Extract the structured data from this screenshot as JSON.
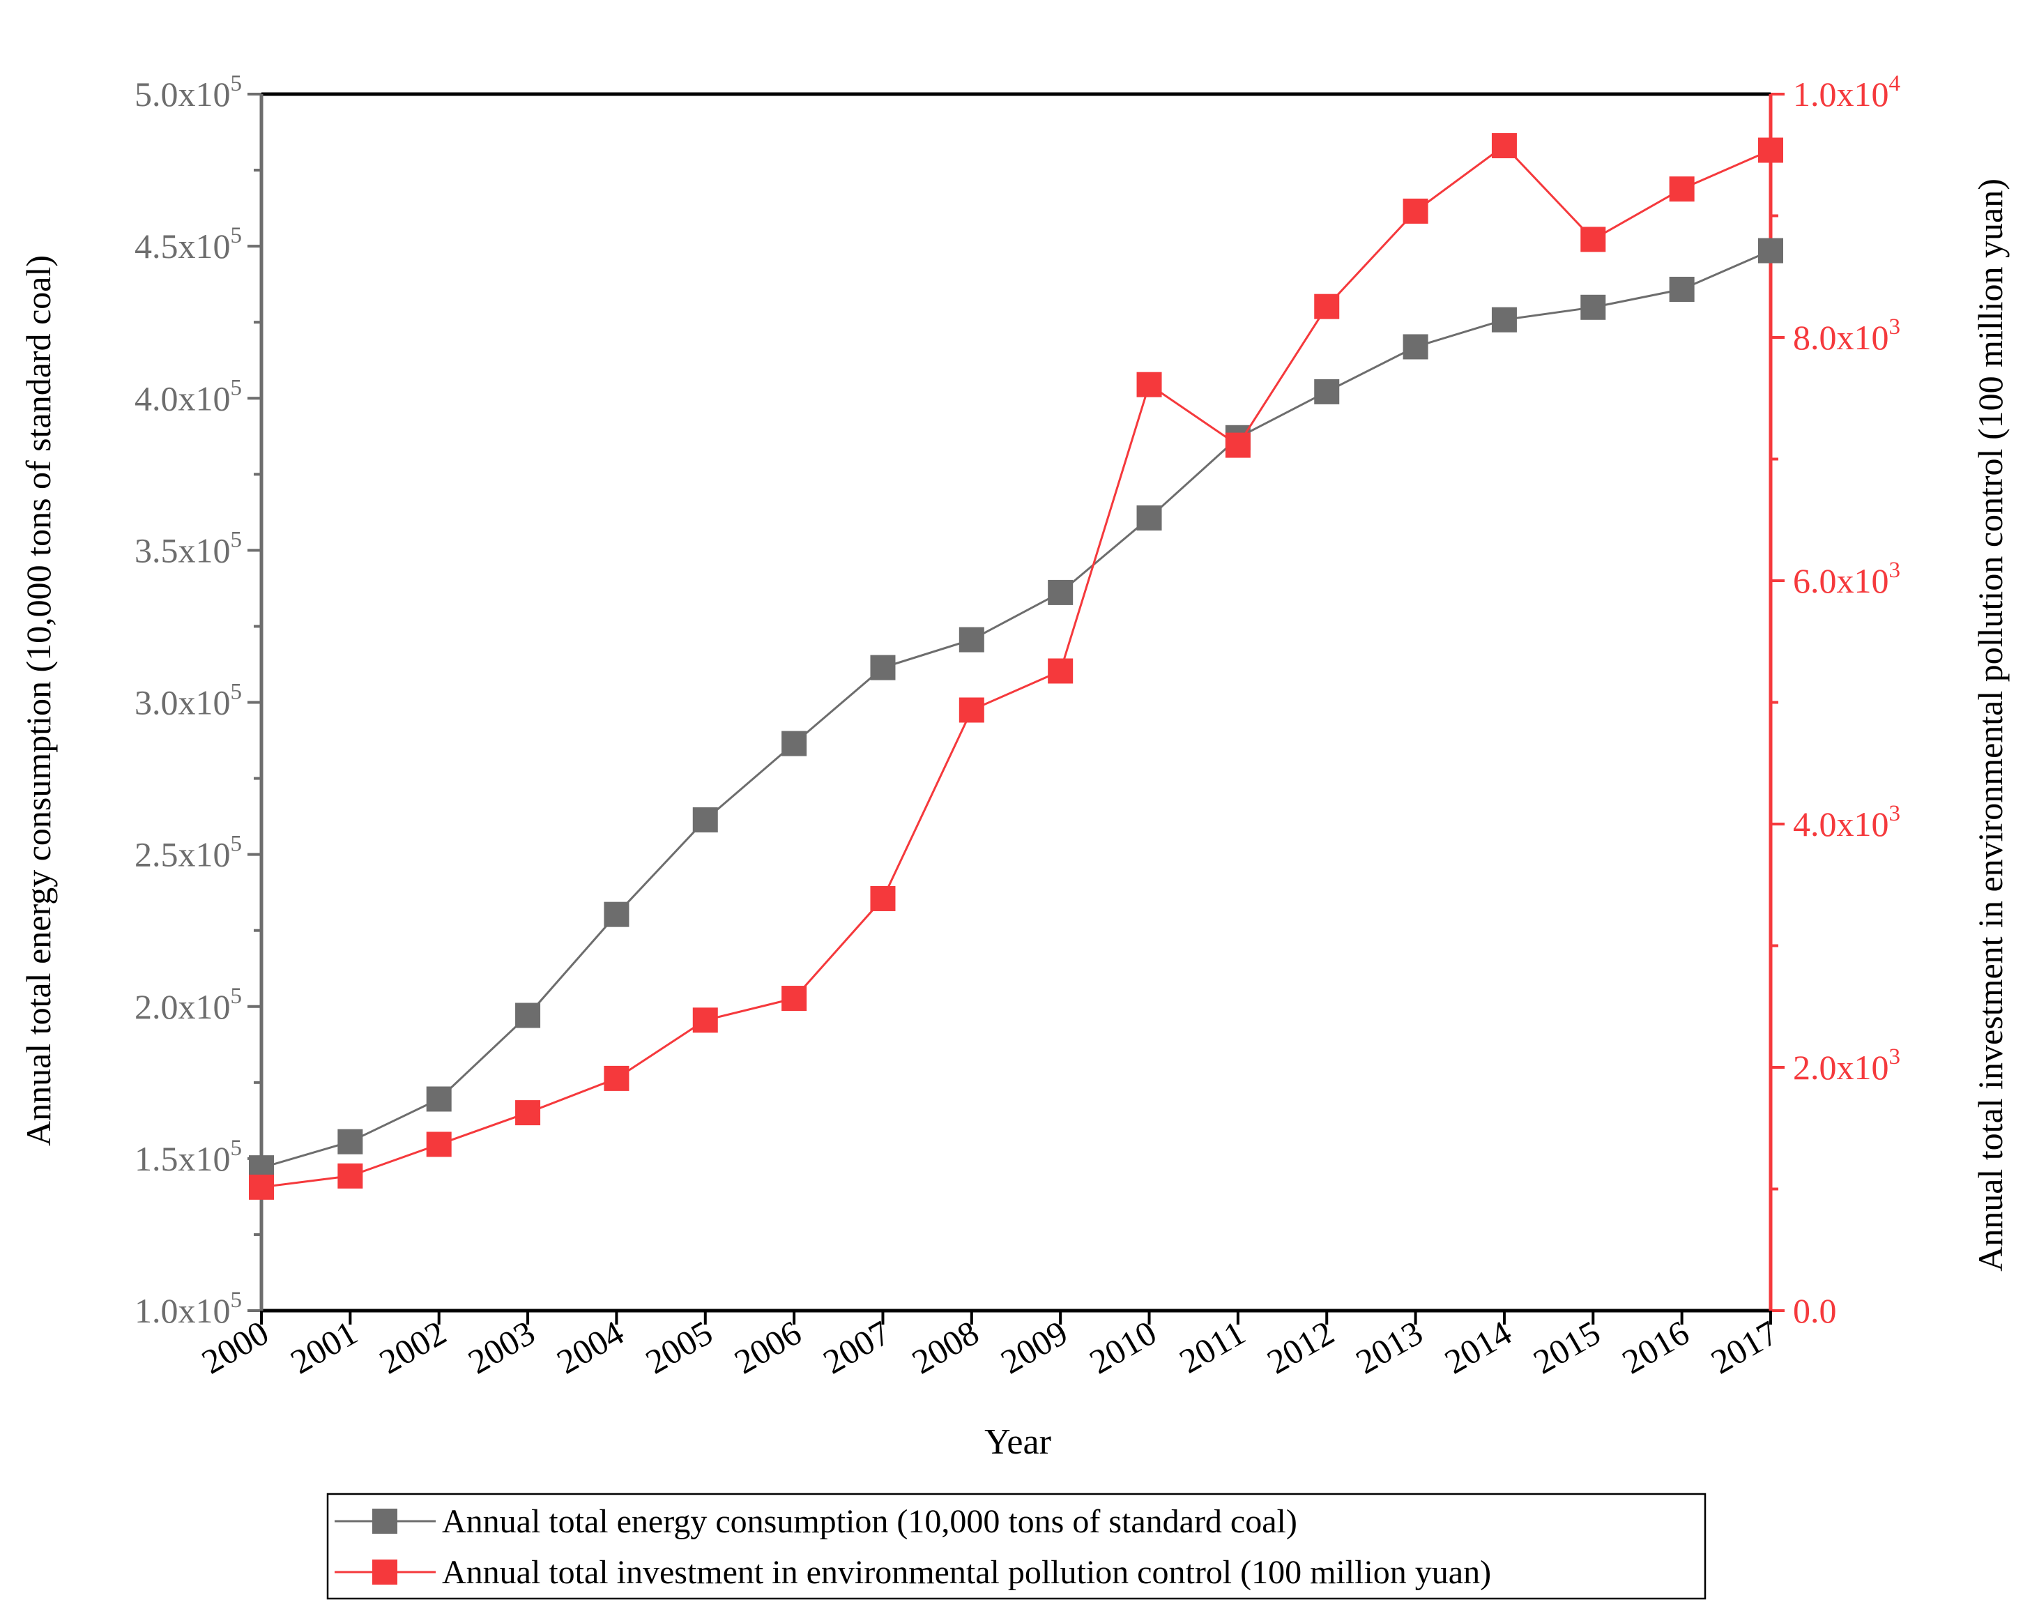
{
  "chart_data": {
    "type": "line",
    "title": "",
    "xlabel": "Year",
    "ylabel_left": "Annual total energy consumption (10,000 tons of standard coal)",
    "ylabel_right": "Annual total investment in environmental pollution control (100 million yuan)",
    "categories": [
      "2000",
      "2001",
      "2002",
      "2003",
      "2004",
      "2005",
      "2006",
      "2007",
      "2008",
      "2009",
      "2010",
      "2011",
      "2012",
      "2013",
      "2014",
      "2015",
      "2016",
      "2017"
    ],
    "y_left": {
      "min": 100000,
      "max": 500000,
      "ticks": [
        {
          "value": 100000,
          "mantissa": "1.0x10",
          "exp": "5"
        },
        {
          "value": 150000,
          "mantissa": "1.5x10",
          "exp": "5"
        },
        {
          "value": 200000,
          "mantissa": "2.0x10",
          "exp": "5"
        },
        {
          "value": 250000,
          "mantissa": "2.5x10",
          "exp": "5"
        },
        {
          "value": 300000,
          "mantissa": "3.0x10",
          "exp": "5"
        },
        {
          "value": 350000,
          "mantissa": "3.5x10",
          "exp": "5"
        },
        {
          "value": 400000,
          "mantissa": "4.0x10",
          "exp": "5"
        },
        {
          "value": 450000,
          "mantissa": "4.5x10",
          "exp": "5"
        },
        {
          "value": 500000,
          "mantissa": "5.0x10",
          "exp": "5"
        }
      ]
    },
    "y_right": {
      "min": 0,
      "max": 10000,
      "ticks": [
        {
          "value": 0,
          "mantissa": "0.0",
          "exp": ""
        },
        {
          "value": 2000,
          "mantissa": "2.0x10",
          "exp": "3"
        },
        {
          "value": 4000,
          "mantissa": "4.0x10",
          "exp": "3"
        },
        {
          "value": 6000,
          "mantissa": "6.0x10",
          "exp": "3"
        },
        {
          "value": 8000,
          "mantissa": "8.0x10",
          "exp": "3"
        },
        {
          "value": 10000,
          "mantissa": "1.0x10",
          "exp": "4"
        }
      ]
    },
    "series": [
      {
        "name": "Annual total energy consumption (10,000 tons of standard coal)",
        "axis": "left",
        "color": "#6d6d6d",
        "values": [
          146964,
          155547,
          169577,
          197083,
          230281,
          261369,
          286467,
          311442,
          320611,
          336126,
          360648,
          387043,
          402138,
          416913,
          425806,
          429905,
          435819,
          448529
        ]
      },
      {
        "name": "Annual total investment in environmental pollution control (100 million yuan)",
        "axis": "right",
        "color": "#f5393c",
        "values": [
          1015,
          1107,
          1367,
          1627,
          1909,
          2388,
          2567,
          3387,
          4937,
          5258,
          7612,
          7114,
          8254,
          9038,
          9576,
          8806,
          9220,
          9539
        ]
      }
    ],
    "legend_position": "bottom"
  }
}
